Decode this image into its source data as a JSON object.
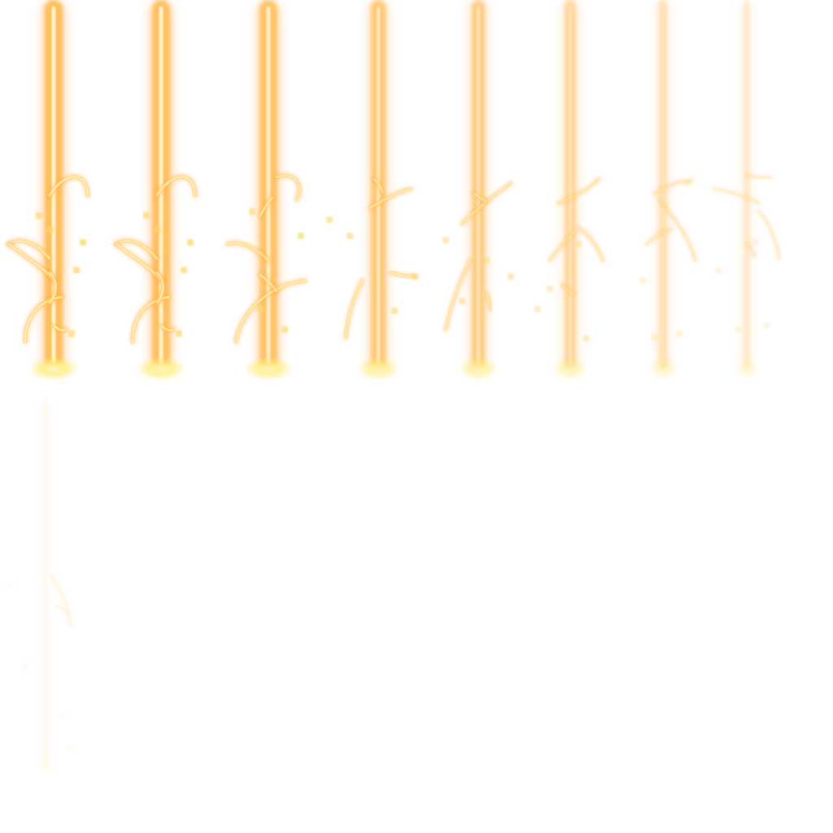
{
  "sprite_sheet": {
    "description_type": "vfx-frames",
    "frame_count": 9,
    "frames": [
      {
        "index": 1,
        "intensity": 1.0
      },
      {
        "index": 2,
        "intensity": 0.95
      },
      {
        "index": 3,
        "intensity": 0.88
      },
      {
        "index": 4,
        "intensity": 0.78
      },
      {
        "index": 5,
        "intensity": 0.68
      },
      {
        "index": 6,
        "intensity": 0.52
      },
      {
        "index": 7,
        "intensity": 0.4
      },
      {
        "index": 8,
        "intensity": 0.28
      },
      {
        "index": 9,
        "intensity": 0.12
      }
    ],
    "colors": {
      "background": "#ffffff",
      "beam_core": "#fff6d8",
      "beam_mid": "#ffb84a",
      "beam_outer": "#ff9a2e",
      "spark": "#ffd66b",
      "glow": "#ffe98a"
    }
  }
}
